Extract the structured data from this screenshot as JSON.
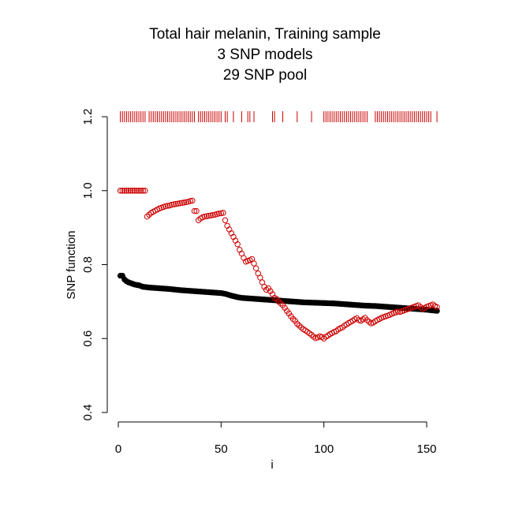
{
  "chart_data": {
    "type": "scatter",
    "title_lines": [
      "Total hair melanin, Training sample",
      "3 SNP models",
      "29 SNP pool"
    ],
    "xlabel": "i",
    "ylabel": "SNP function",
    "xlim": [
      0,
      155
    ],
    "ylim": [
      0.4,
      1.2
    ],
    "x_ticks": [
      "0",
      "50",
      "100",
      "150"
    ],
    "x_tick_values": [
      0,
      50,
      100,
      150
    ],
    "y_ticks": [
      "0.4",
      "0.6",
      "0.8",
      "1.0",
      "1.2"
    ],
    "y_tick_values": [
      0.4,
      0.6,
      0.8,
      1.0,
      1.2
    ],
    "colors": {
      "black_series": "#000000",
      "red_series": "#cc0000",
      "rug": "#cc0000"
    },
    "rug": {
      "y": 1.2,
      "x": [
        1,
        2,
        3,
        4,
        5,
        6,
        7,
        8,
        9,
        10,
        11,
        12,
        13,
        15,
        16,
        17,
        18,
        19,
        20,
        21,
        22,
        23,
        24,
        25,
        26,
        27,
        28,
        29,
        30,
        31,
        32,
        33,
        34,
        35,
        36,
        37,
        39,
        40,
        41,
        42,
        43,
        44,
        45,
        46,
        47,
        48,
        49,
        50,
        52,
        53,
        56,
        60,
        63,
        64,
        66,
        75,
        76,
        80,
        87,
        94,
        100,
        101,
        102,
        103,
        104,
        105,
        106,
        107,
        108,
        109,
        110,
        111,
        112,
        113,
        114,
        115,
        116,
        117,
        118,
        119,
        120,
        121,
        125,
        126,
        127,
        128,
        129,
        130,
        131,
        132,
        133,
        134,
        135,
        136,
        137,
        138,
        139,
        140,
        141,
        142,
        143,
        144,
        145,
        146,
        147,
        148,
        149,
        150,
        151,
        152,
        155
      ]
    },
    "series": [
      {
        "marker": "filled-circle",
        "color": "#000000",
        "x": [
          1,
          2,
          3,
          4,
          5,
          6,
          7,
          8,
          9,
          10,
          12,
          15,
          20,
          25,
          30,
          35,
          40,
          45,
          50,
          52,
          55,
          58,
          60,
          65,
          70,
          75,
          80,
          85,
          90,
          95,
          100,
          105,
          110,
          115,
          120,
          125,
          130,
          135,
          140,
          145,
          150,
          155
        ],
        "y": [
          0.77,
          0.77,
          0.76,
          0.755,
          0.752,
          0.75,
          0.748,
          0.746,
          0.745,
          0.744,
          0.74,
          0.738,
          0.736,
          0.734,
          0.731,
          0.729,
          0.727,
          0.725,
          0.723,
          0.721,
          0.716,
          0.712,
          0.71,
          0.708,
          0.706,
          0.704,
          0.702,
          0.7,
          0.698,
          0.697,
          0.696,
          0.695,
          0.693,
          0.691,
          0.689,
          0.688,
          0.686,
          0.684,
          0.682,
          0.68,
          0.678,
          0.675
        ]
      },
      {
        "marker": "open-circle",
        "color": "#cc0000",
        "x": [
          1,
          2,
          3,
          4,
          5,
          6,
          7,
          8,
          9,
          10,
          11,
          12,
          13,
          14,
          15,
          16,
          17,
          18,
          19,
          20,
          21,
          22,
          23,
          24,
          25,
          26,
          27,
          28,
          29,
          30,
          31,
          32,
          33,
          34,
          35,
          36,
          37,
          38,
          39,
          40,
          41,
          42,
          43,
          44,
          45,
          46,
          47,
          48,
          49,
          50,
          51,
          52,
          53,
          54,
          55,
          56,
          57,
          58,
          59,
          60,
          61,
          62,
          63,
          64,
          65,
          66,
          67,
          68,
          69,
          70,
          71,
          72,
          73,
          74,
          75,
          76,
          77,
          78,
          79,
          80,
          81,
          82,
          83,
          84,
          85,
          86,
          87,
          88,
          89,
          90,
          91,
          92,
          93,
          94,
          95,
          96,
          97,
          98,
          99,
          100,
          101,
          102,
          103,
          104,
          105,
          106,
          107,
          108,
          109,
          110,
          111,
          112,
          113,
          114,
          115,
          116,
          117,
          118,
          119,
          120,
          121,
          122,
          123,
          124,
          125,
          126,
          127,
          128,
          129,
          130,
          131,
          132,
          133,
          134,
          135,
          136,
          137,
          138,
          139,
          140,
          141,
          142,
          143,
          144,
          145,
          146,
          147,
          148,
          149,
          150,
          151,
          152,
          153,
          154,
          155
        ],
        "y": [
          1.0,
          1.0,
          1.0,
          1.0,
          1.0,
          1.0,
          1.0,
          1.0,
          1.0,
          1.0,
          1.0,
          1.0,
          1.0,
          0.93,
          0.935,
          0.94,
          0.943,
          0.946,
          0.949,
          0.952,
          0.954,
          0.956,
          0.958,
          0.959,
          0.96,
          0.962,
          0.963,
          0.964,
          0.965,
          0.966,
          0.967,
          0.968,
          0.969,
          0.97,
          0.972,
          0.973,
          0.945,
          0.945,
          0.92,
          0.925,
          0.928,
          0.93,
          0.931,
          0.932,
          0.933,
          0.934,
          0.935,
          0.937,
          0.938,
          0.939,
          0.94,
          0.92,
          0.905,
          0.895,
          0.885,
          0.875,
          0.865,
          0.855,
          0.84,
          0.83,
          0.818,
          0.808,
          0.81,
          0.812,
          0.815,
          0.803,
          0.79,
          0.776,
          0.765,
          0.752,
          0.74,
          0.732,
          0.736,
          0.728,
          0.72,
          0.71,
          0.707,
          0.7,
          0.695,
          0.69,
          0.683,
          0.675,
          0.668,
          0.66,
          0.653,
          0.648,
          0.64,
          0.635,
          0.63,
          0.625,
          0.622,
          0.618,
          0.614,
          0.61,
          0.605,
          0.601,
          0.603,
          0.606,
          0.604,
          0.6,
          0.605,
          0.608,
          0.612,
          0.615,
          0.618,
          0.62,
          0.625,
          0.628,
          0.63,
          0.635,
          0.638,
          0.642,
          0.645,
          0.648,
          0.652,
          0.655,
          0.65,
          0.648,
          0.652,
          0.656,
          0.65,
          0.645,
          0.641,
          0.643,
          0.647,
          0.65,
          0.653,
          0.656,
          0.658,
          0.66,
          0.662,
          0.664,
          0.667,
          0.669,
          0.671,
          0.673,
          0.672,
          0.674,
          0.676,
          0.678,
          0.68,
          0.682,
          0.684,
          0.686,
          0.688,
          0.69,
          0.685,
          0.68,
          0.683,
          0.686,
          0.688,
          0.69,
          0.692,
          0.688,
          0.685
        ]
      }
    ]
  }
}
